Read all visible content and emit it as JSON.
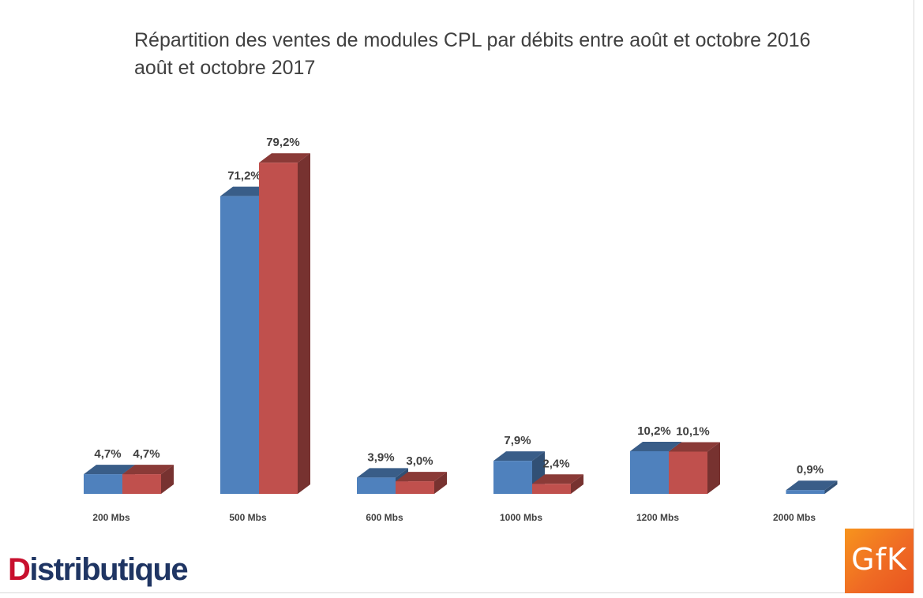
{
  "title_line1": "Répartition des ventes de modules CPL par débits entre août et octobre 2016",
  "title_line2": "août et octobre 2017",
  "logo_left": {
    "text_d": "D",
    "text_rest": "istributique",
    "accent_color": "#c8102e",
    "main_color": "#1f3563"
  },
  "logo_right": {
    "text": "GfK",
    "color": "#f7941d"
  },
  "chart_data": {
    "type": "bar",
    "title": "Répartition des ventes de modules CPL par débits entre août et octobre 2016 août et octobre 2017",
    "xlabel": "",
    "ylabel": "",
    "categories": [
      "200 Mbs",
      "500 Mbs",
      "600 Mbs",
      "1000 Mbs",
      "1200 Mbs",
      "2000 Mbs"
    ],
    "series": [
      {
        "color": "#4f81bd",
        "values": [
          4.7,
          71.2,
          3.9,
          7.9,
          10.2,
          0.9
        ],
        "labels": [
          "4,7%",
          "71,2%",
          "3,9%",
          "7,9%",
          "10,2%",
          "0,9%"
        ]
      },
      {
        "color": "#c0504d",
        "values": [
          4.7,
          79.2,
          3.0,
          2.4,
          10.1,
          null
        ],
        "labels": [
          "4,7%",
          "79,2%",
          "3,0%",
          "2,4%",
          "10,1%",
          ""
        ]
      }
    ],
    "ylim": [
      0,
      80
    ],
    "grid": false,
    "legend": "none",
    "style": "3d-clustered"
  }
}
